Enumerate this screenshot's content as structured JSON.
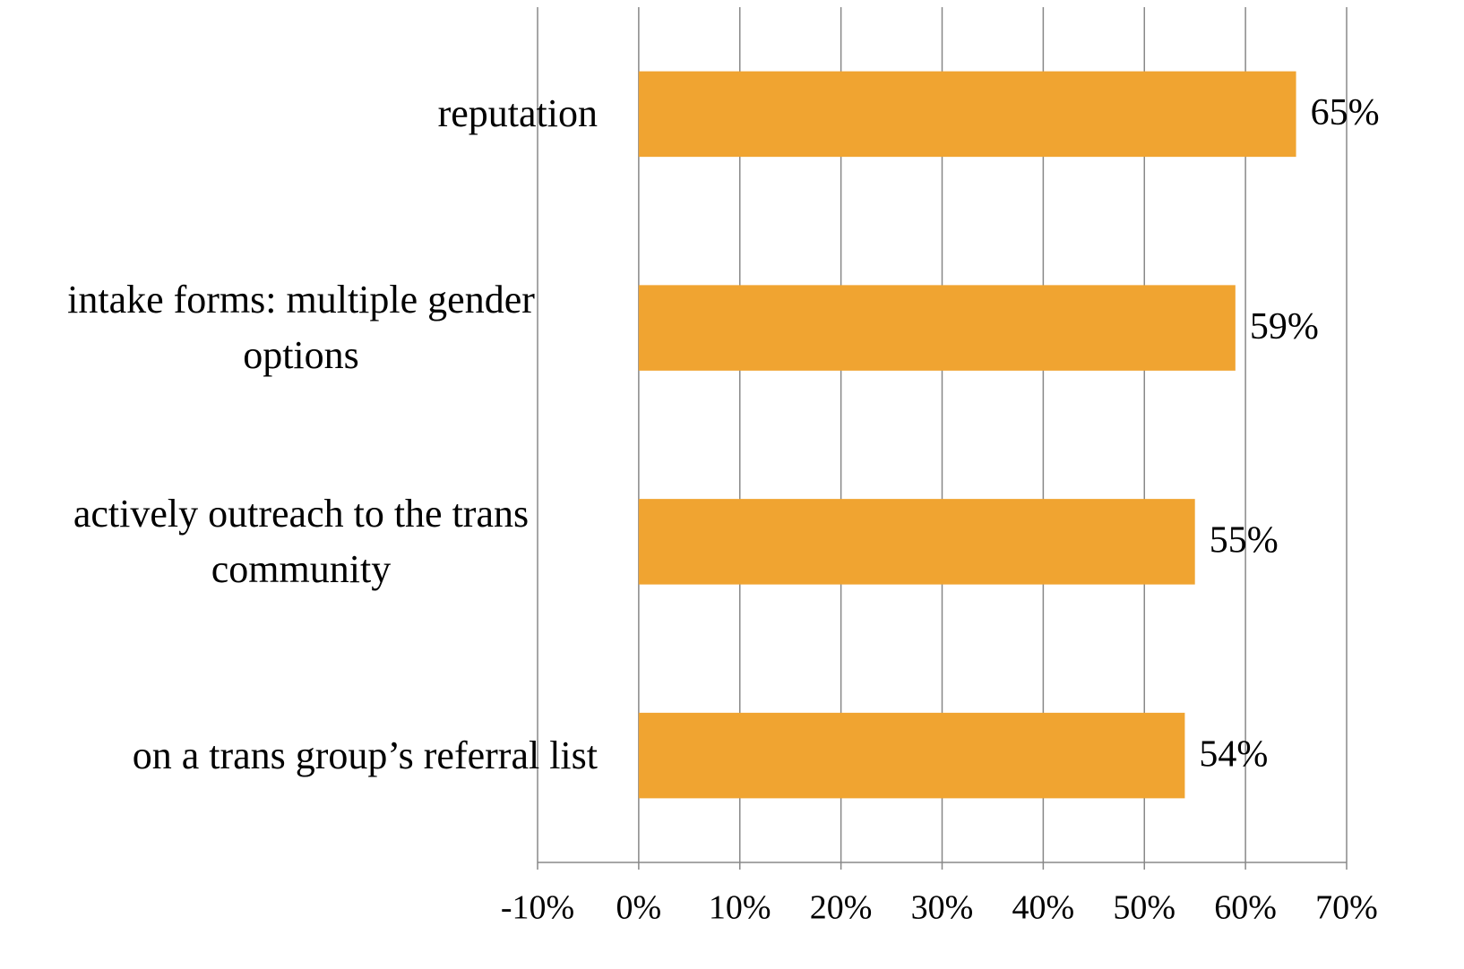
{
  "chart_data": {
    "type": "bar",
    "orientation": "horizontal",
    "categories": [
      "reputation",
      "intake forms: multiple gender options",
      "actively outreach to the trans community",
      "on a trans group’s referral list"
    ],
    "values": [
      65,
      59,
      55,
      54
    ],
    "value_labels": [
      "65%",
      "59%",
      "55%",
      "54%"
    ],
    "color": "#f0a431",
    "xlim": [
      -10,
      70
    ],
    "xticks": [
      {
        "value": -10,
        "label": "-10%"
      },
      {
        "value": 0,
        "label": "0%"
      },
      {
        "value": 10,
        "label": "10%"
      },
      {
        "value": 20,
        "label": "20%"
      },
      {
        "value": 30,
        "label": "30%"
      },
      {
        "value": 40,
        "label": "40%"
      },
      {
        "value": 50,
        "label": "50%"
      },
      {
        "value": 60,
        "label": "60%"
      },
      {
        "value": 70,
        "label": "70%"
      }
    ],
    "grid": true
  }
}
